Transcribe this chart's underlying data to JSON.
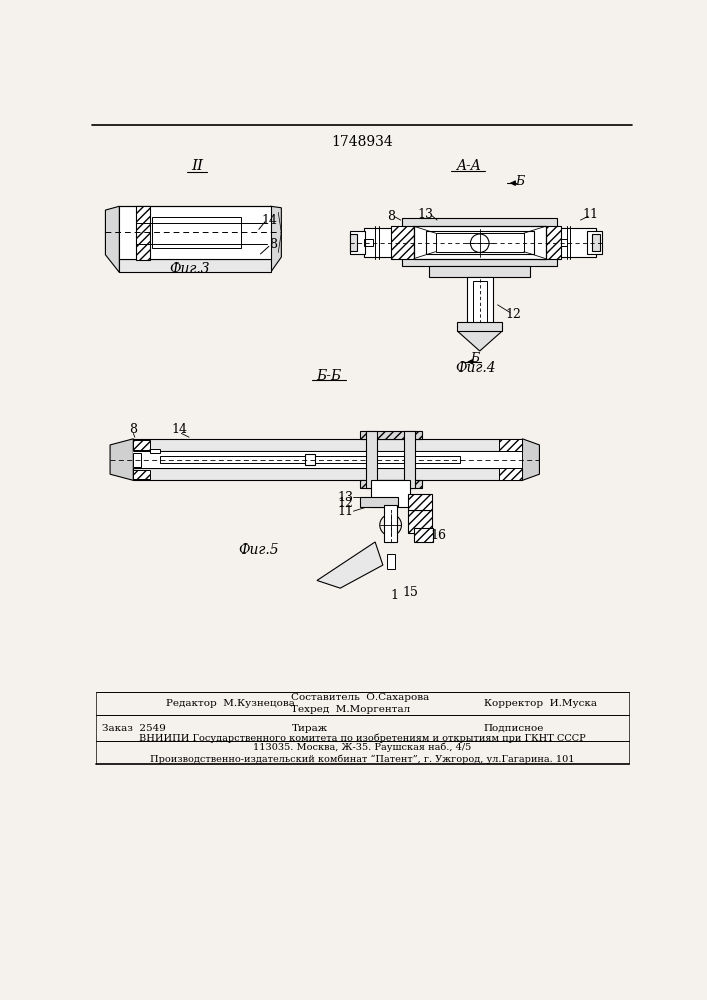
{
  "patent_number": "1748934",
  "bg": "#f5f2ed",
  "fig3_label": "Фиг.3",
  "fig4_label": "Фиг.4",
  "fig5_label": "Фиг.5",
  "section_AA": "A-A",
  "section_BB": "Б-Б",
  "section_B": "Б",
  "section_II": "II",
  "footer_r1_l": "Редактор  М.Кузнецова",
  "footer_r1_m1": "Составитель  О.Сахарова",
  "footer_r1_m2": "Техред  М.Моргентал",
  "footer_r1_r": "Корректор  И.Муска",
  "footer_r2_l": "Заказ  2549",
  "footer_r2_m": "Тираж",
  "footer_r2_r": "Подписное",
  "footer_r3": "ВНИИПИ Государственного комитета по изобретениям и открытиям при ГКНТ СССР",
  "footer_r4": "113035. Москва, Ж-35. Раушская наб., 4/5",
  "footer_r5": "Производственно-издательский комбинат “Патент”, г. Ужгород, ул.Гагарина. 101"
}
